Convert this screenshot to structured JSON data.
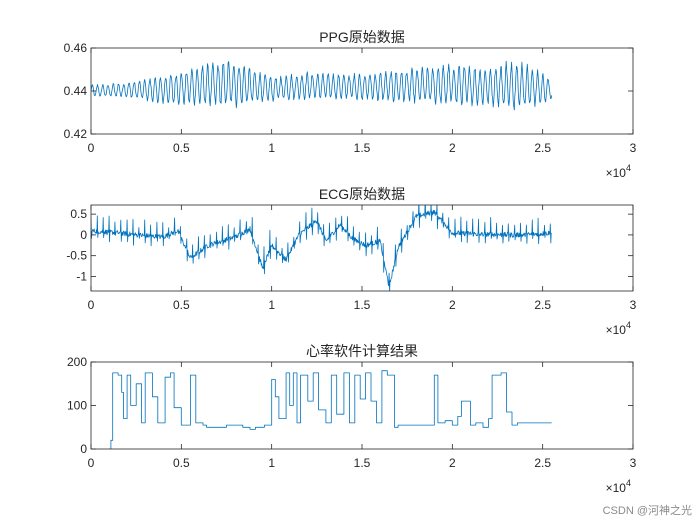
{
  "figure": {
    "background": "#ffffff",
    "line_color": "#0072BD",
    "axis_color": "#262626"
  },
  "watermark": "CSDN @河神之光",
  "chart_data": [
    {
      "type": "line",
      "title": "PPG原始数据",
      "xlim": [
        0,
        30000
      ],
      "ylim": [
        0.42,
        0.46
      ],
      "x_ticks": [
        0,
        5000,
        10000,
        15000,
        20000,
        25000,
        30000
      ],
      "x_tick_labels": [
        "0",
        "0.5",
        "1",
        "1.5",
        "2",
        "2.5",
        "3"
      ],
      "y_ticks": [
        0.42,
        0.44,
        0.46
      ],
      "y_tick_labels": [
        "0.42",
        "0.44",
        "0.46"
      ],
      "x_exponent_label": "×10^4",
      "box": true,
      "grid": false,
      "series": [
        {
          "x_range": [
            0,
            25500
          ],
          "approx_envelope": {
            "x": [
              0,
              2000,
              4000,
              6000,
              8000,
              9000,
              10000,
              12000,
              14000,
              16000,
              18000,
              20000,
              22000,
              23500,
              25500
            ],
            "low": [
              0.437,
              0.437,
              0.434,
              0.433,
              0.432,
              0.434,
              0.435,
              0.436,
              0.436,
              0.435,
              0.434,
              0.433,
              0.433,
              0.43,
              0.435
            ],
            "high": [
              0.443,
              0.444,
              0.447,
              0.452,
              0.455,
              0.45,
              0.447,
              0.449,
              0.448,
              0.449,
              0.451,
              0.453,
              0.451,
              0.456,
              0.446
            ]
          },
          "approx_cycle_length": 290
        }
      ]
    },
    {
      "type": "line",
      "title": "ECG原始数据",
      "xlim": [
        0,
        30000
      ],
      "ylim": [
        -1.35,
        0.72
      ],
      "x_ticks": [
        0,
        5000,
        10000,
        15000,
        20000,
        25000,
        30000
      ],
      "x_tick_labels": [
        "0",
        "0.5",
        "1",
        "1.5",
        "2",
        "2.5",
        "3"
      ],
      "y_ticks": [
        0.5,
        0,
        -0.5,
        -1
      ],
      "y_tick_labels": [
        "0.5",
        "0",
        "-0.5",
        "-1"
      ],
      "x_exponent_label": "×10^4",
      "box": true,
      "grid": false,
      "series": [
        {
          "x_range": [
            0,
            25500
          ],
          "approx_baseline": {
            "x": [
              0,
              1500,
              2500,
              4000,
              4800,
              5500,
              6500,
              8000,
              8800,
              9500,
              10000,
              10800,
              11500,
              12500,
              13000,
              13800,
              14500,
              15200,
              16000,
              16500,
              17000,
              18000,
              19000,
              20000,
              21500,
              23000,
              24000,
              25500
            ],
            "y": [
              0.1,
              0.05,
              0.0,
              -0.05,
              0.1,
              -0.55,
              -0.25,
              -0.05,
              0.15,
              -0.8,
              -0.25,
              -0.6,
              0.0,
              0.35,
              -0.15,
              0.25,
              -0.1,
              -0.25,
              -0.15,
              -1.25,
              -0.3,
              0.45,
              0.55,
              0.05,
              0.02,
              0.0,
              0.0,
              0.05
            ]
          },
          "approx_spike_height": 0.3,
          "approx_cycle_length": 330
        }
      ]
    },
    {
      "type": "line",
      "title": "心率软件计算结果",
      "xlim": [
        0,
        30000
      ],
      "ylim": [
        0,
        200
      ],
      "x_ticks": [
        0,
        5000,
        10000,
        15000,
        20000,
        25000,
        30000
      ],
      "x_tick_labels": [
        "0",
        "0.5",
        "1",
        "1.5",
        "2",
        "2.5",
        "3"
      ],
      "y_ticks": [
        0,
        100,
        200
      ],
      "y_tick_labels": [
        "0",
        "100",
        "200"
      ],
      "x_exponent_label": "×10^4",
      "box": true,
      "grid": false,
      "series": [
        {
          "step": true,
          "x": [
            1000,
            1100,
            1200,
            1500,
            1700,
            1800,
            2000,
            2200,
            2500,
            2800,
            3000,
            3400,
            3700,
            4100,
            4400,
            4600,
            5000,
            5500,
            5800,
            6200,
            6400,
            7500,
            8400,
            8800,
            9100,
            9600,
            10000,
            10200,
            10400,
            10800,
            11000,
            11200,
            11400,
            11600,
            12000,
            12300,
            12600,
            13000,
            13300,
            13600,
            14000,
            14300,
            14600,
            14900,
            15200,
            15500,
            15800,
            16100,
            16400,
            16800,
            17000,
            17500,
            19000,
            19200,
            19600,
            20000,
            20300,
            20500,
            21000,
            21300,
            21700,
            22000,
            22200,
            22700,
            23000,
            23300,
            23600,
            25500
          ],
          "y": [
            0,
            20,
            175,
            170,
            130,
            70,
            170,
            100,
            150,
            60,
            175,
            120,
            60,
            165,
            175,
            95,
            55,
            170,
            60,
            55,
            50,
            55,
            50,
            45,
            50,
            55,
            160,
            120,
            70,
            175,
            100,
            175,
            60,
            170,
            110,
            175,
            90,
            60,
            170,
            80,
            175,
            60,
            170,
            115,
            175,
            110,
            60,
            180,
            170,
            50,
            55,
            55,
            170,
            60,
            65,
            55,
            75,
            110,
            55,
            60,
            50,
            70,
            170,
            175,
            85,
            55,
            60,
            60
          ]
        }
      ]
    }
  ]
}
